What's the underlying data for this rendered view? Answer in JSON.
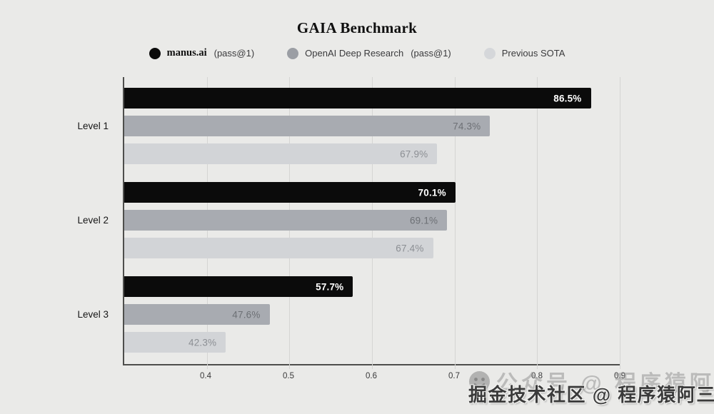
{
  "title": "GAIA Benchmark",
  "legend": [
    {
      "label": "manus.ai",
      "suffix": "(pass@1)",
      "color": "#0b0b0b"
    },
    {
      "label": "OpenAI Deep Research",
      "suffix": "(pass@1)",
      "color": "#9b9ea4"
    },
    {
      "label": "Previous SOTA",
      "suffix": "",
      "color": "#d5d7da"
    }
  ],
  "chart_data": {
    "type": "bar",
    "orientation": "horizontal",
    "title": "GAIA Benchmark",
    "categories": [
      "Level 1",
      "Level 2",
      "Level 3"
    ],
    "series": [
      {
        "name": "manus.ai (pass@1)",
        "color": "#0b0b0b",
        "label_color": "#ffffff",
        "label_weight": 700,
        "values": [
          86.5,
          70.1,
          57.7
        ]
      },
      {
        "name": "OpenAI Deep Research (pass@1)",
        "color": "#a8abb1",
        "label_color": "#6d7075",
        "label_weight": 400,
        "values": [
          74.3,
          69.1,
          47.6
        ]
      },
      {
        "name": "Previous SOTA",
        "color": "#d2d4d7",
        "label_color": "#8c8f94",
        "label_weight": 400,
        "values": [
          67.9,
          67.4,
          42.3
        ]
      }
    ],
    "xlabel": "",
    "ylabel": "",
    "xlim": [
      0.3,
      0.9
    ],
    "x_ticks": [
      0.4,
      0.5,
      0.6,
      0.7,
      0.8,
      0.9
    ],
    "x_tick_labels": [
      "0.4",
      "0.5",
      "0.6",
      "0.7",
      "0.8",
      "0.9"
    ],
    "value_format": "percent1",
    "grid": true,
    "legend_position": "top"
  },
  "watermark": {
    "faint_text": "公众号 @ 程序猿阿三",
    "dark_text": "掘金技术社区 @ 程序猿阿三"
  },
  "colors": {
    "background": "#eaeae8",
    "gridline": "#d5d5d3",
    "axis": "#4e4e4c",
    "tick_text": "#39393a",
    "category_text": "#161616"
  }
}
